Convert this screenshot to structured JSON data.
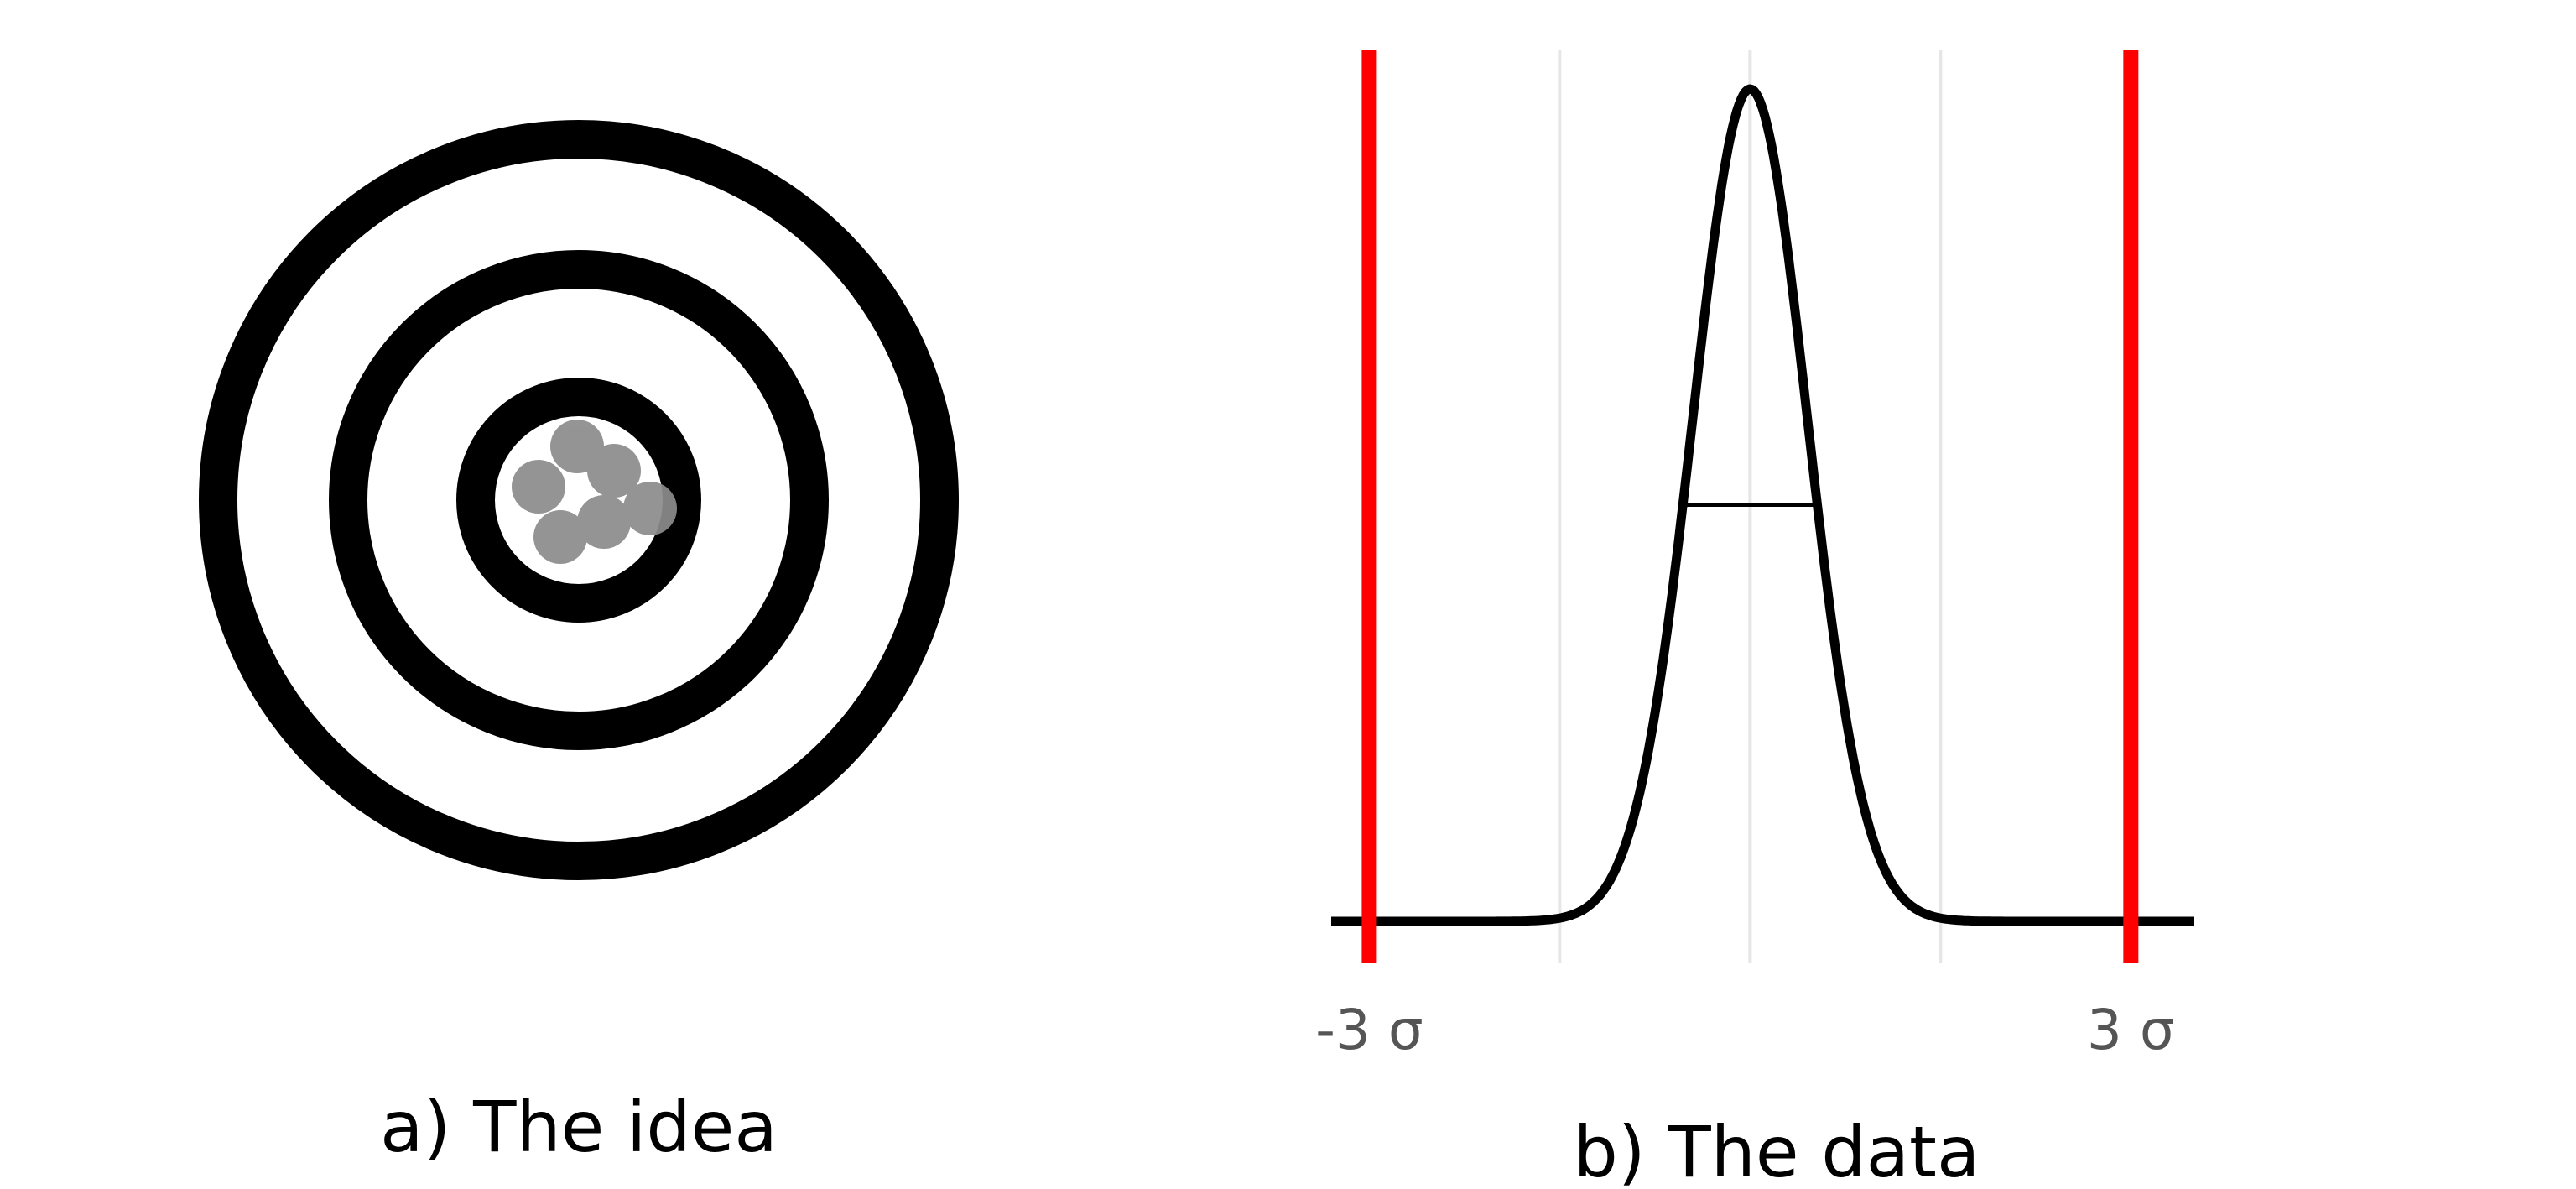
{
  "panel_a": {
    "caption": "a) The idea",
    "ring_color": "#000000",
    "hit_color": "#8c8c8c",
    "rings": 3,
    "hits": 7
  },
  "panel_b": {
    "caption": "b) The data",
    "curve_color": "#000000",
    "limit_color": "#ff0000",
    "guide_color": "#e6e6e6",
    "tick_labels": {
      "left": "-3 σ",
      "right": "3 σ"
    },
    "chart_data": {
      "type": "line",
      "title": "",
      "xlabel": "",
      "ylabel": "",
      "xlim": [
        -3.3,
        3.5
      ],
      "ylim": [
        0,
        1
      ],
      "distribution": "normal",
      "mean": 0,
      "sd": 0.45,
      "limit_lines_x": [
        -3,
        3
      ],
      "guide_lines_x": [
        -1.5,
        0,
        1.5
      ],
      "fwhm_marker_y": 0.5,
      "grid": false,
      "legend": "none"
    }
  }
}
